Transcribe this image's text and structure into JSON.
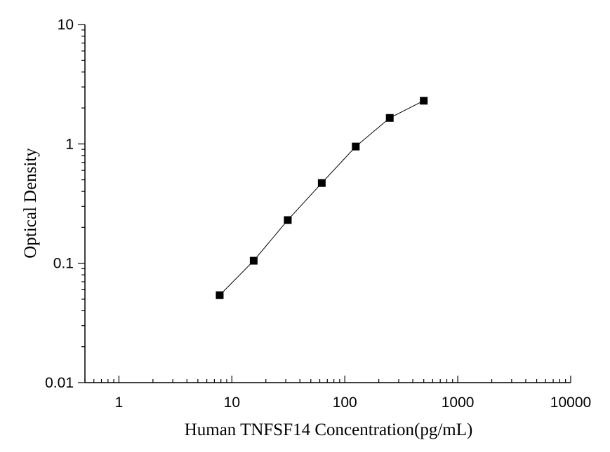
{
  "chart_data": {
    "type": "scatter",
    "title": "",
    "xlabel": "Human TNFSF14 Concentration(pg/mL)",
    "ylabel": "Optical Density",
    "x_scale": "log",
    "y_scale": "log",
    "xlim": [
      0.5,
      10000
    ],
    "ylim": [
      0.01,
      10
    ],
    "x_ticks": [
      {
        "value": 1,
        "label": "1"
      },
      {
        "value": 10,
        "label": "10"
      },
      {
        "value": 100,
        "label": "100"
      },
      {
        "value": 1000,
        "label": "1000"
      },
      {
        "value": 10000,
        "label": "10000"
      }
    ],
    "y_ticks": [
      {
        "value": 0.01,
        "label": "0.01"
      },
      {
        "value": 0.1,
        "label": "0.1"
      },
      {
        "value": 1,
        "label": "1"
      },
      {
        "value": 10,
        "label": "10"
      }
    ],
    "grid": false,
    "legend": "none",
    "marker": "square",
    "color": "#000000",
    "series": [
      {
        "x": [
          7.8,
          15.6,
          31.25,
          62.5,
          125,
          250,
          500
        ],
        "y": [
          0.054,
          0.105,
          0.23,
          0.47,
          0.95,
          1.65,
          2.3
        ]
      }
    ]
  }
}
